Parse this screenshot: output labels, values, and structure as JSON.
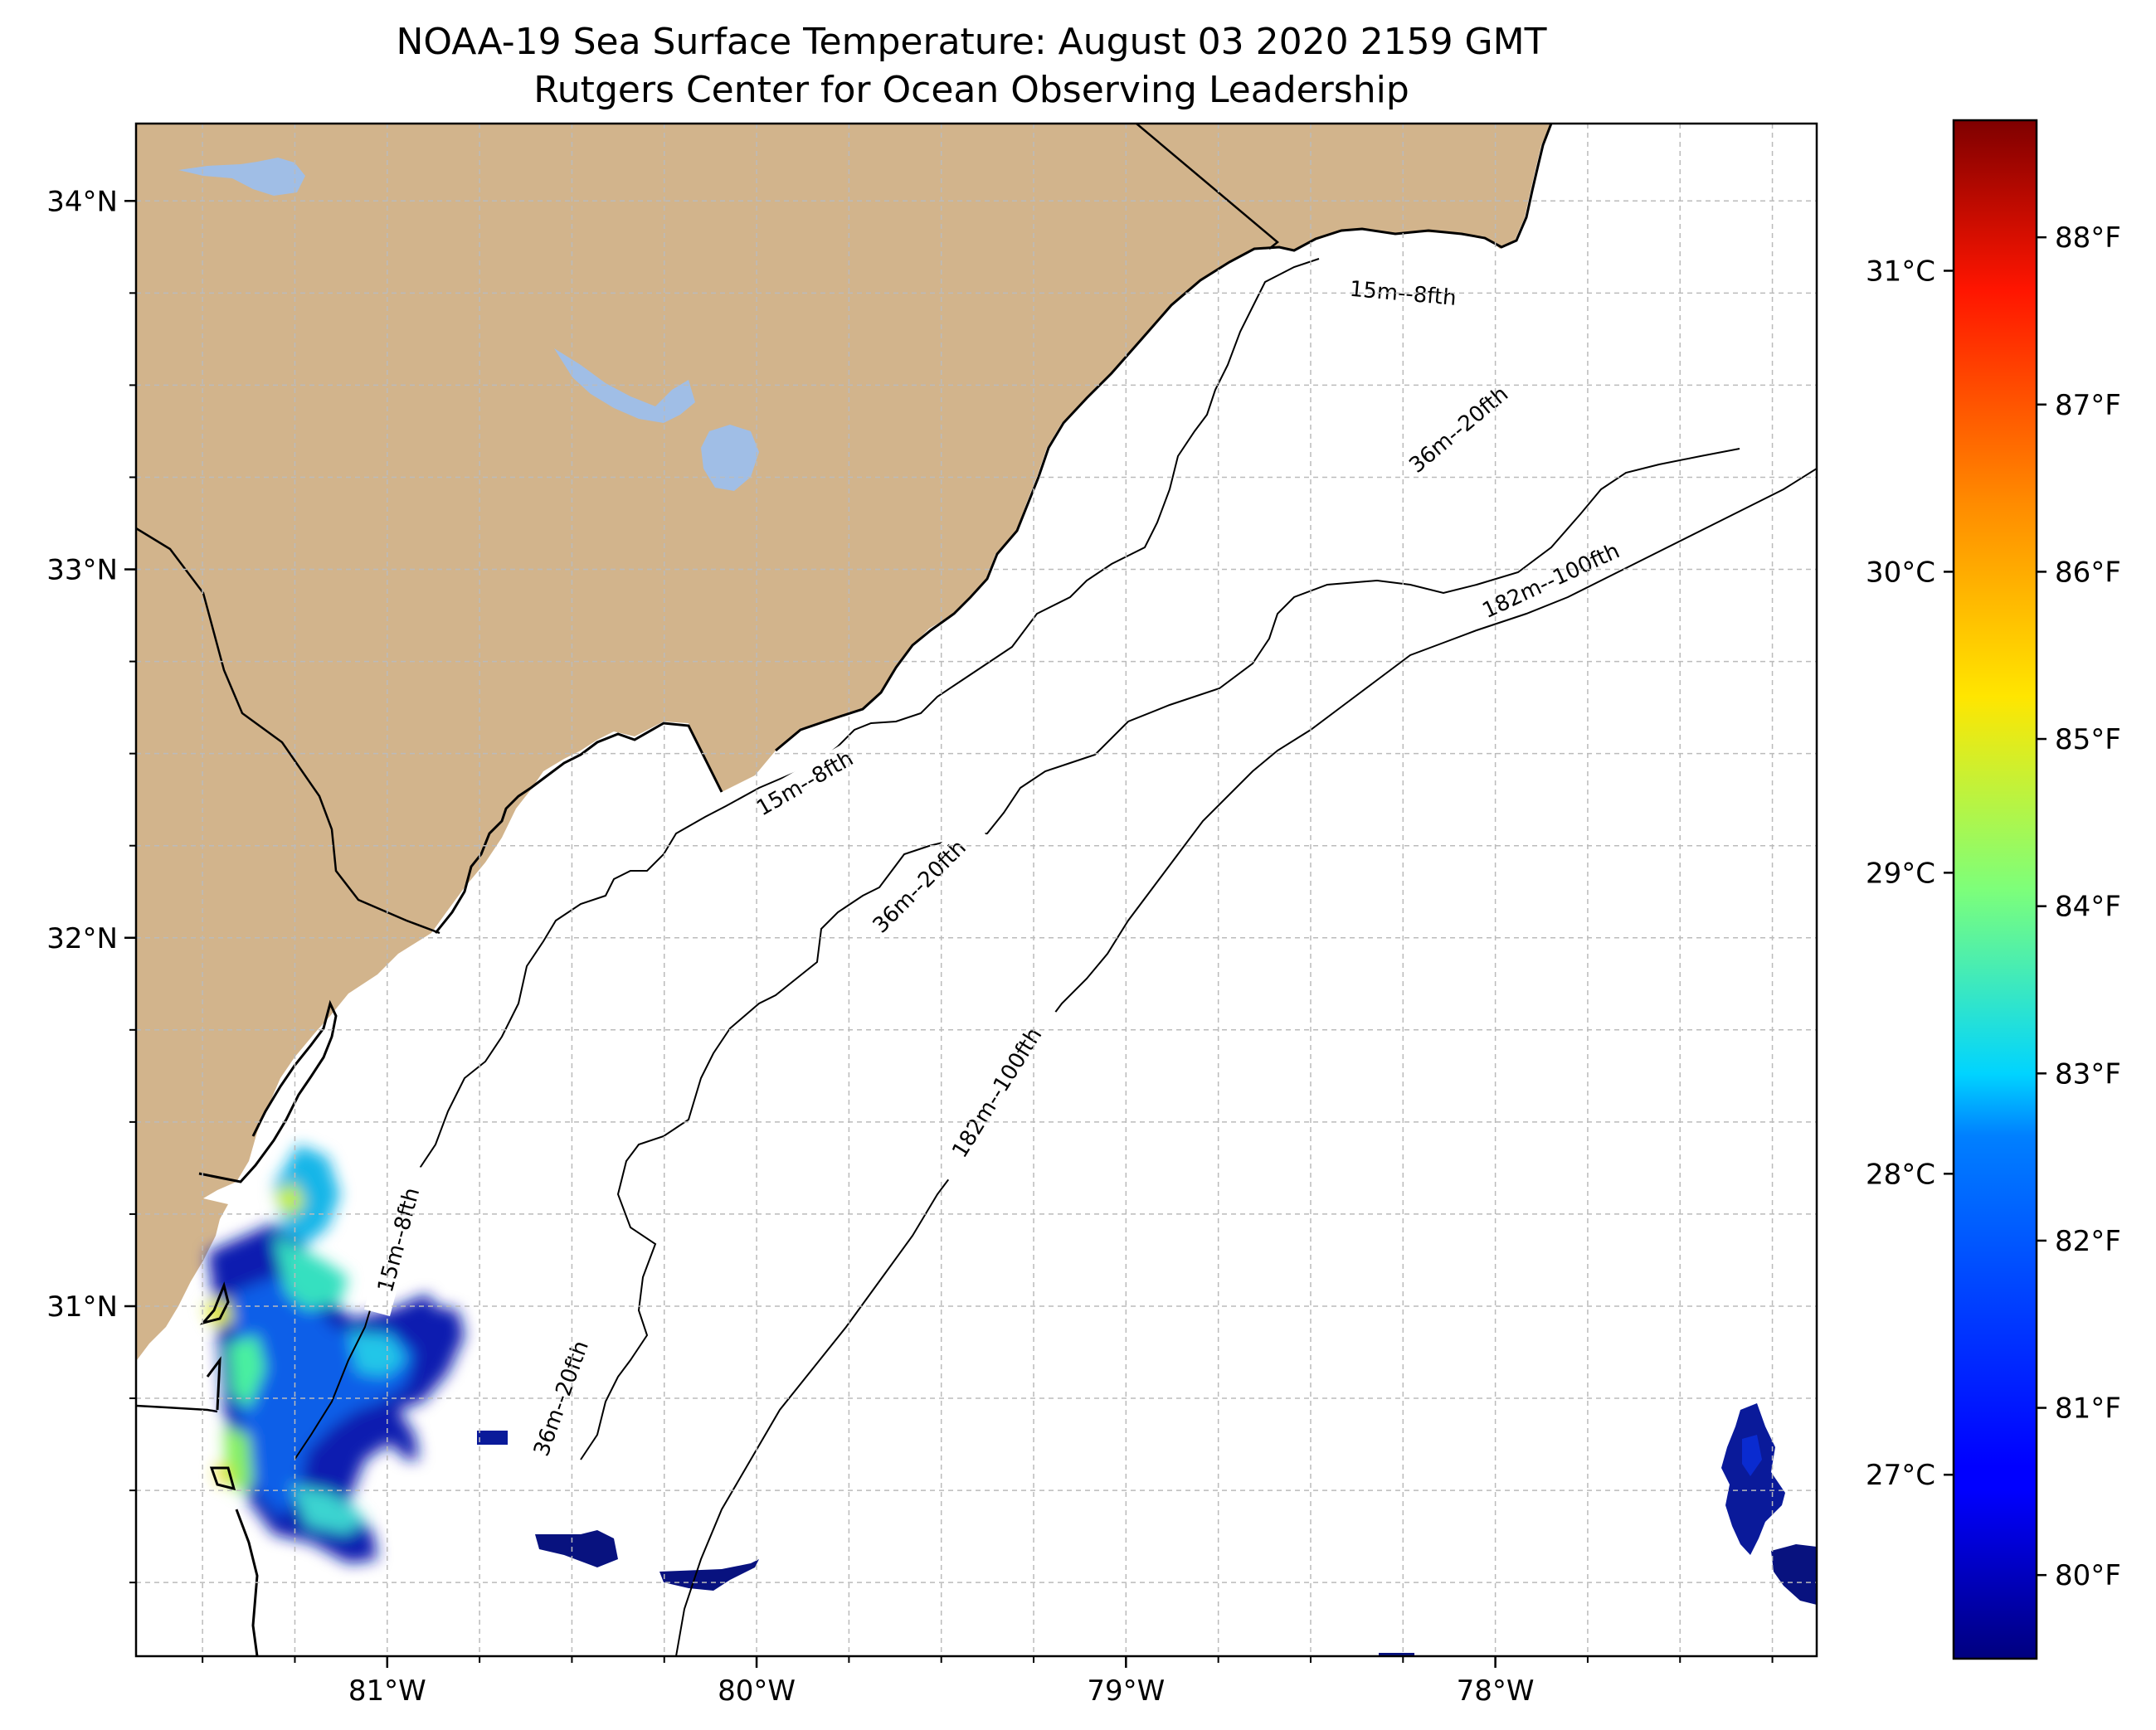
{
  "title": {
    "line1": "NOAA-19 Sea Surface Temperature: August 03 2020 2159 GMT",
    "line2": "Rutgers Center for Ocean Observing Leadership"
  },
  "map": {
    "lon_range": [
      -81.68,
      -77.13
    ],
    "lat_range": [
      30.05,
      34.21
    ],
    "land_color": "#d2b48c",
    "water_body_color": "#a0bee6",
    "ocean_color": "#ffffff",
    "gridlines": true,
    "lon_ticks": [
      {
        "value": -81,
        "label": "81°W"
      },
      {
        "value": -80,
        "label": "80°W"
      },
      {
        "value": -79,
        "label": "79°W"
      },
      {
        "value": -78,
        "label": "78°W"
      }
    ],
    "lat_ticks": [
      {
        "value": 34,
        "label": "34°N"
      },
      {
        "value": 33,
        "label": "33°N"
      },
      {
        "value": 32,
        "label": "32°N"
      },
      {
        "value": 31,
        "label": "31°N"
      }
    ],
    "isobath_labels": [
      {
        "text": "15m--8fth",
        "lon": -78.25,
        "lat": 33.75,
        "angle": 5
      },
      {
        "text": "15m--8fth",
        "lon": -79.87,
        "lat": 32.42,
        "angle": -30
      },
      {
        "text": "15m--8fth",
        "lon": -80.97,
        "lat": 31.18,
        "angle": -75
      },
      {
        "text": "36m--20fth",
        "lon": -78.1,
        "lat": 33.38,
        "angle": -40
      },
      {
        "text": "36m--20fth",
        "lon": -79.56,
        "lat": 32.14,
        "angle": -45
      },
      {
        "text": "36m--20fth",
        "lon": -80.53,
        "lat": 30.75,
        "angle": -70
      },
      {
        "text": "182m--100fth",
        "lon": -77.85,
        "lat": 32.97,
        "angle": -25
      },
      {
        "text": "182m--100fth",
        "lon": -79.35,
        "lat": 31.58,
        "angle": -58
      }
    ]
  },
  "colorbar": {
    "vmin_f": 79.5,
    "vmax_f": 88.7,
    "colormap": "jet",
    "fahrenheit_ticks": [
      "80°F",
      "81°F",
      "82°F",
      "83°F",
      "84°F",
      "85°F",
      "86°F",
      "87°F",
      "88°F"
    ],
    "celsius_ticks": [
      "27°C",
      "28°C",
      "29°C",
      "30°C",
      "31°C"
    ]
  }
}
